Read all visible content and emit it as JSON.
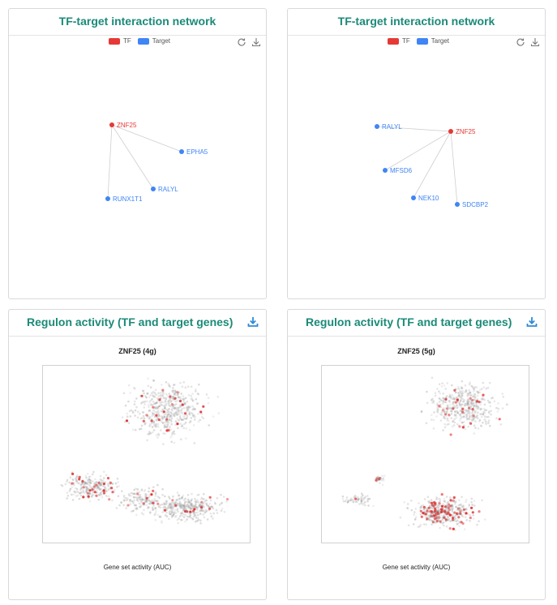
{
  "network_panel_title": "TF-target interaction network",
  "regulon_panel_title": "Regulon activity (TF and target genes)",
  "legend": {
    "tf": "TF",
    "target": "Target",
    "tf_color": "#e53935",
    "target_color": "#3f85f5"
  },
  "icons": {
    "refresh": "refresh-icon",
    "download": "download-icon"
  },
  "networks": [
    {
      "tf": "ZNF25",
      "targets": [
        "EPHA5",
        "RALYL",
        "RUNX1T1"
      ]
    },
    {
      "tf": "ZNF25",
      "targets": [
        "RALYL",
        "MFSD6",
        "NEK10",
        "SDCBP2"
      ]
    }
  ],
  "regulons": [
    {
      "title": "ZNF25 (4g)",
      "xlabel": "Gene set activity (AUC)"
    },
    {
      "title": "ZNF25 (5g)",
      "xlabel": "Gene set activity (AUC)"
    }
  ]
}
